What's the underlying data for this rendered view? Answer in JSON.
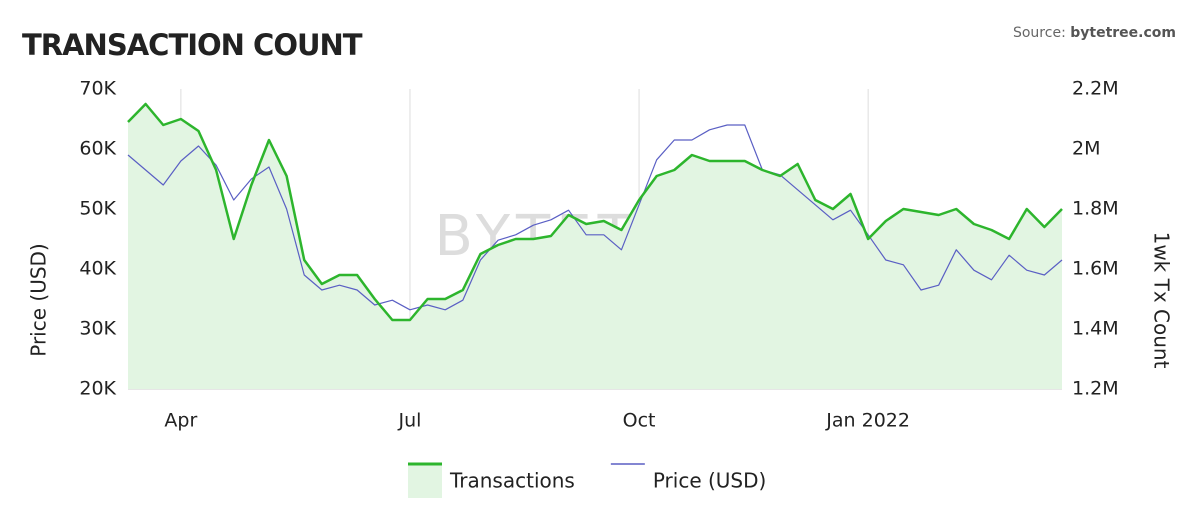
{
  "chart_data": {
    "type": "line",
    "title": "TRANSACTION COUNT",
    "source_label": "Source:",
    "source_site": "bytetree.com",
    "watermark": "BYTETREE",
    "y_label": "Price (USD)",
    "y2_label": "1wk Tx Count",
    "categories": [
      null,
      null,
      null,
      "Apr",
      null,
      null,
      null,
      null,
      null,
      null,
      null,
      null,
      null,
      null,
      null,
      null,
      "Jul",
      null,
      null,
      null,
      null,
      null,
      null,
      null,
      null,
      null,
      null,
      null,
      null,
      "Oct",
      null,
      null,
      null,
      null,
      null,
      null,
      null,
      null,
      null,
      null,
      null,
      null,
      "Jan 2022",
      null,
      null,
      null,
      null,
      null,
      null,
      null,
      null,
      null,
      null,
      null
    ],
    "series": [
      {
        "name": "Transactions",
        "color": "#2db52d",
        "fill": "#e2f5e2",
        "axis": "y2",
        "values": [
          2090000,
          2150000,
          2080000,
          2100000,
          2060000,
          1930000,
          1700000,
          1880000,
          2030000,
          1910000,
          1630000,
          1550000,
          1580000,
          1580000,
          1500000,
          1430000,
          1430000,
          1500000,
          1500000,
          1530000,
          1650000,
          1680000,
          1700000,
          1700000,
          1710000,
          1780000,
          1750000,
          1760000,
          1730000,
          1830000,
          1910000,
          1930000,
          1980000,
          1960000,
          1960000,
          1960000,
          1930000,
          1910000,
          1950000,
          1830000,
          1800000,
          1850000,
          1700000,
          1760000,
          1800000,
          1790000,
          1780000,
          1800000,
          1750000,
          1730000,
          1700000,
          1800000,
          1740000,
          1800000
        ]
      },
      {
        "name": "Price (USD)",
        "color": "#5a5fc4",
        "values": [
          59000,
          56500,
          54000,
          58000,
          60500,
          57300,
          51500,
          55000,
          57000,
          50000,
          39000,
          36500,
          37300,
          36500,
          34000,
          34800,
          33200,
          34000,
          33200,
          34800,
          41500,
          44800,
          45700,
          47300,
          48200,
          49800,
          45700,
          45700,
          43200,
          50700,
          58200,
          61500,
          61500,
          63200,
          64000,
          64000,
          56500,
          55700,
          53200,
          50700,
          48200,
          49800,
          45700,
          41500,
          40700,
          36500,
          37300,
          43200,
          39800,
          38200,
          42300,
          39800,
          39000,
          41500
        ]
      }
    ],
    "ylim": [
      20000,
      70000
    ],
    "yticks": [
      {
        "value": 20000,
        "label": "20K"
      },
      {
        "value": 30000,
        "label": "30K"
      },
      {
        "value": 40000,
        "label": "40K"
      },
      {
        "value": 50000,
        "label": "50K"
      },
      {
        "value": 60000,
        "label": "60K"
      },
      {
        "value": 70000,
        "label": "70K"
      }
    ],
    "y2lim": [
      1200000,
      2200000
    ],
    "y2ticks": [
      {
        "value": 1200000,
        "label": "1.2M"
      },
      {
        "value": 1400000,
        "label": "1.4M"
      },
      {
        "value": 1600000,
        "label": "1.6M"
      },
      {
        "value": 1800000,
        "label": "1.8M"
      },
      {
        "value": 2000000,
        "label": "2M"
      },
      {
        "value": 2200000,
        "label": "2.2M"
      }
    ],
    "grid": "x",
    "legend": "bottom"
  }
}
